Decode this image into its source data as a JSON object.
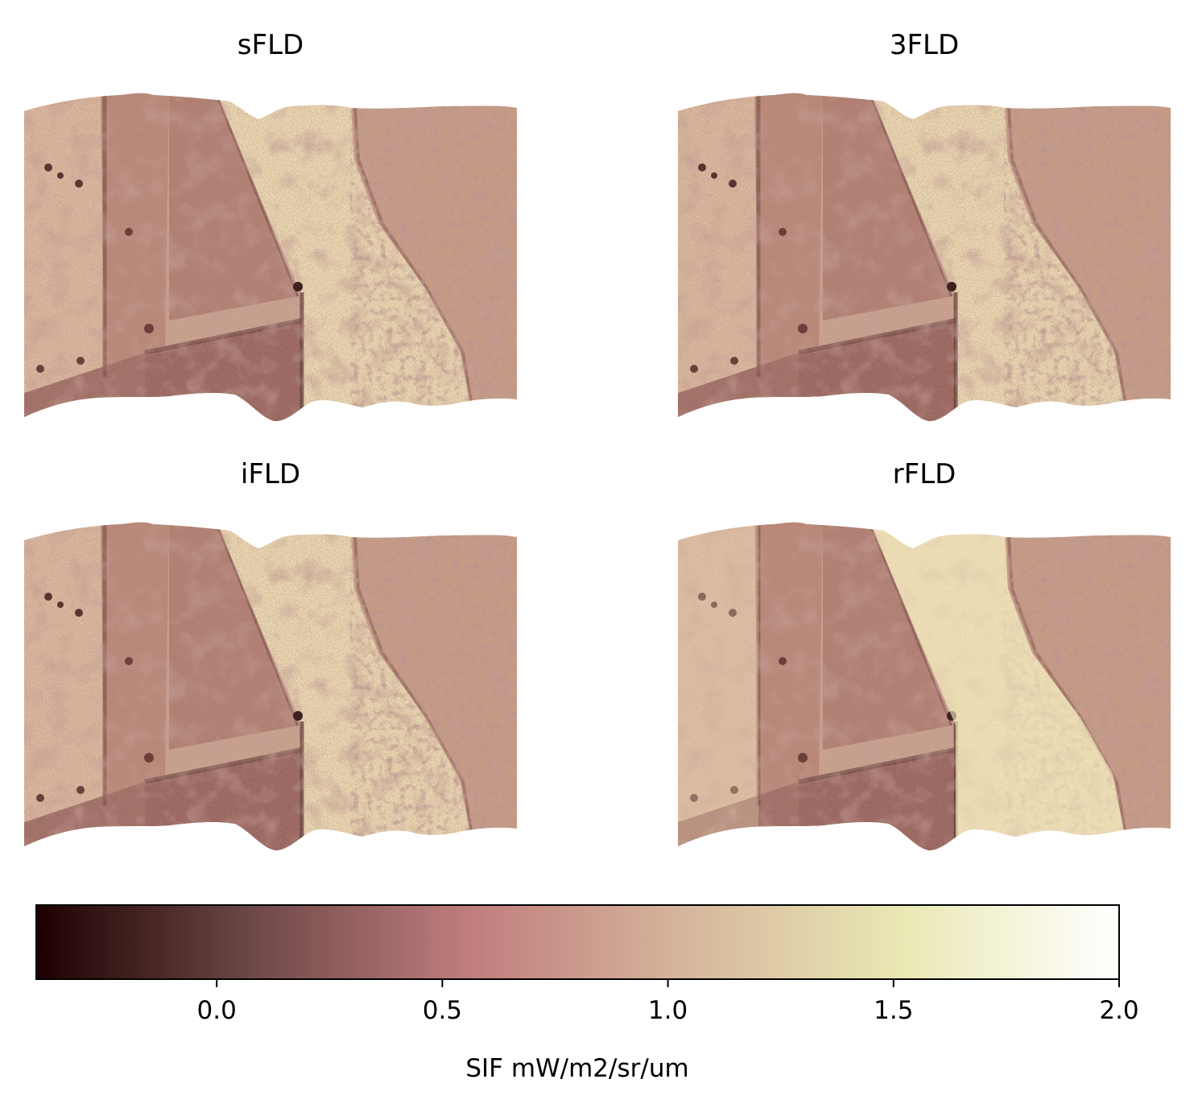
{
  "chart_data": {
    "type": "heatmap",
    "layout": "2x2 grid of image maps with shared horizontal colorbar at bottom",
    "panels": [
      {
        "title": "sFLD"
      },
      {
        "title": "3FLD"
      },
      {
        "title": "iFLD"
      },
      {
        "title": "rFLD"
      }
    ],
    "axes_visible": false,
    "colorbar": {
      "label": "SIF mW/m2/sr/um",
      "vmin": -0.4,
      "vmax": 2.0,
      "ticks": [
        0.0,
        0.5,
        1.0,
        1.5,
        2.0
      ],
      "tick_labels": [
        "0.0",
        "0.5",
        "1.0",
        "1.5",
        "2.0"
      ],
      "orientation": "horizontal",
      "placement": "bottom",
      "colormap": "pink",
      "colormap_stops": [
        "#1e0000",
        "#6e4848",
        "#c07d7d",
        "#d6b69c",
        "#e9e8b4",
        "#ffffff"
      ]
    }
  }
}
